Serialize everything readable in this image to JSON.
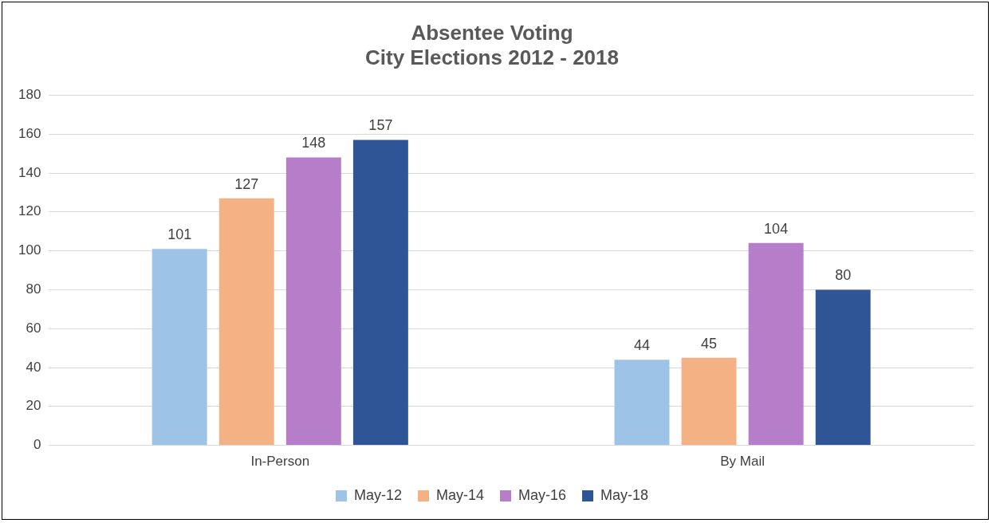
{
  "chart_data": {
    "type": "bar",
    "title": [
      "Absentee Voting",
      "City Elections 2012 - 2018"
    ],
    "categories": [
      "In-Person",
      "By Mail"
    ],
    "series": [
      {
        "name": "May-12",
        "color": "#9dc3e6",
        "values": [
          101,
          44
        ]
      },
      {
        "name": "May-14",
        "color": "#f4b183",
        "values": [
          127,
          45
        ]
      },
      {
        "name": "May-16",
        "color": "#b67dc9",
        "values": [
          148,
          104
        ]
      },
      {
        "name": "May-18",
        "color": "#2f5597",
        "values": [
          157,
          80
        ]
      }
    ],
    "ylim": [
      0,
      180
    ],
    "yticks": [
      0,
      20,
      40,
      60,
      80,
      100,
      120,
      140,
      160,
      180
    ],
    "grid": "y",
    "legend": "bottom",
    "data_labels": true
  }
}
